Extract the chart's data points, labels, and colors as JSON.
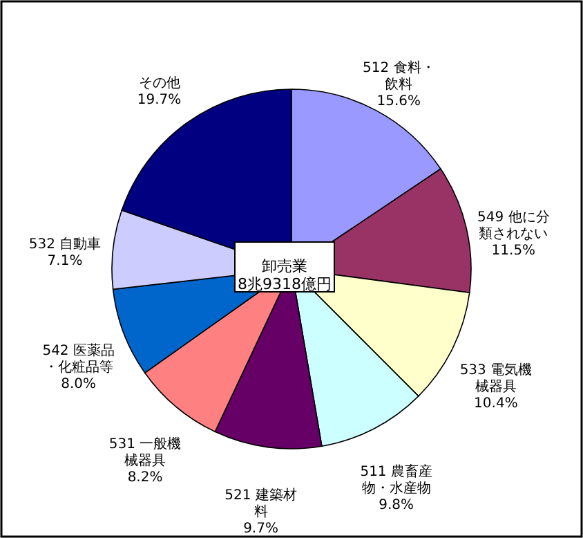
{
  "chart_data": {
    "type": "pie",
    "categories": [
      "512 食料・飲料",
      "549 他に分類されない",
      "533 電気機械器具",
      "511 農畜産物・水産物",
      "521 建築材料",
      "531 一般機械器具",
      "542 医薬品・化粧品等",
      "532 自動車",
      "その他"
    ],
    "values": [
      15.6,
      11.5,
      10.4,
      9.8,
      9.7,
      8.2,
      8.0,
      7.1,
      19.7
    ],
    "colors": [
      "#9999ff",
      "#993366",
      "#ffffcc",
      "#ccffff",
      "#660066",
      "#ff8080",
      "#0066cc",
      "#ccccff",
      "#000080"
    ],
    "value_labels": [
      "15.6%",
      "11.5%",
      "10.4%",
      "9.8%",
      "9.7%",
      "8.2%",
      "8.0%",
      "7.1%",
      "19.7%"
    ],
    "annotations": [
      "卸売業",
      "8兆9318億円"
    ]
  }
}
